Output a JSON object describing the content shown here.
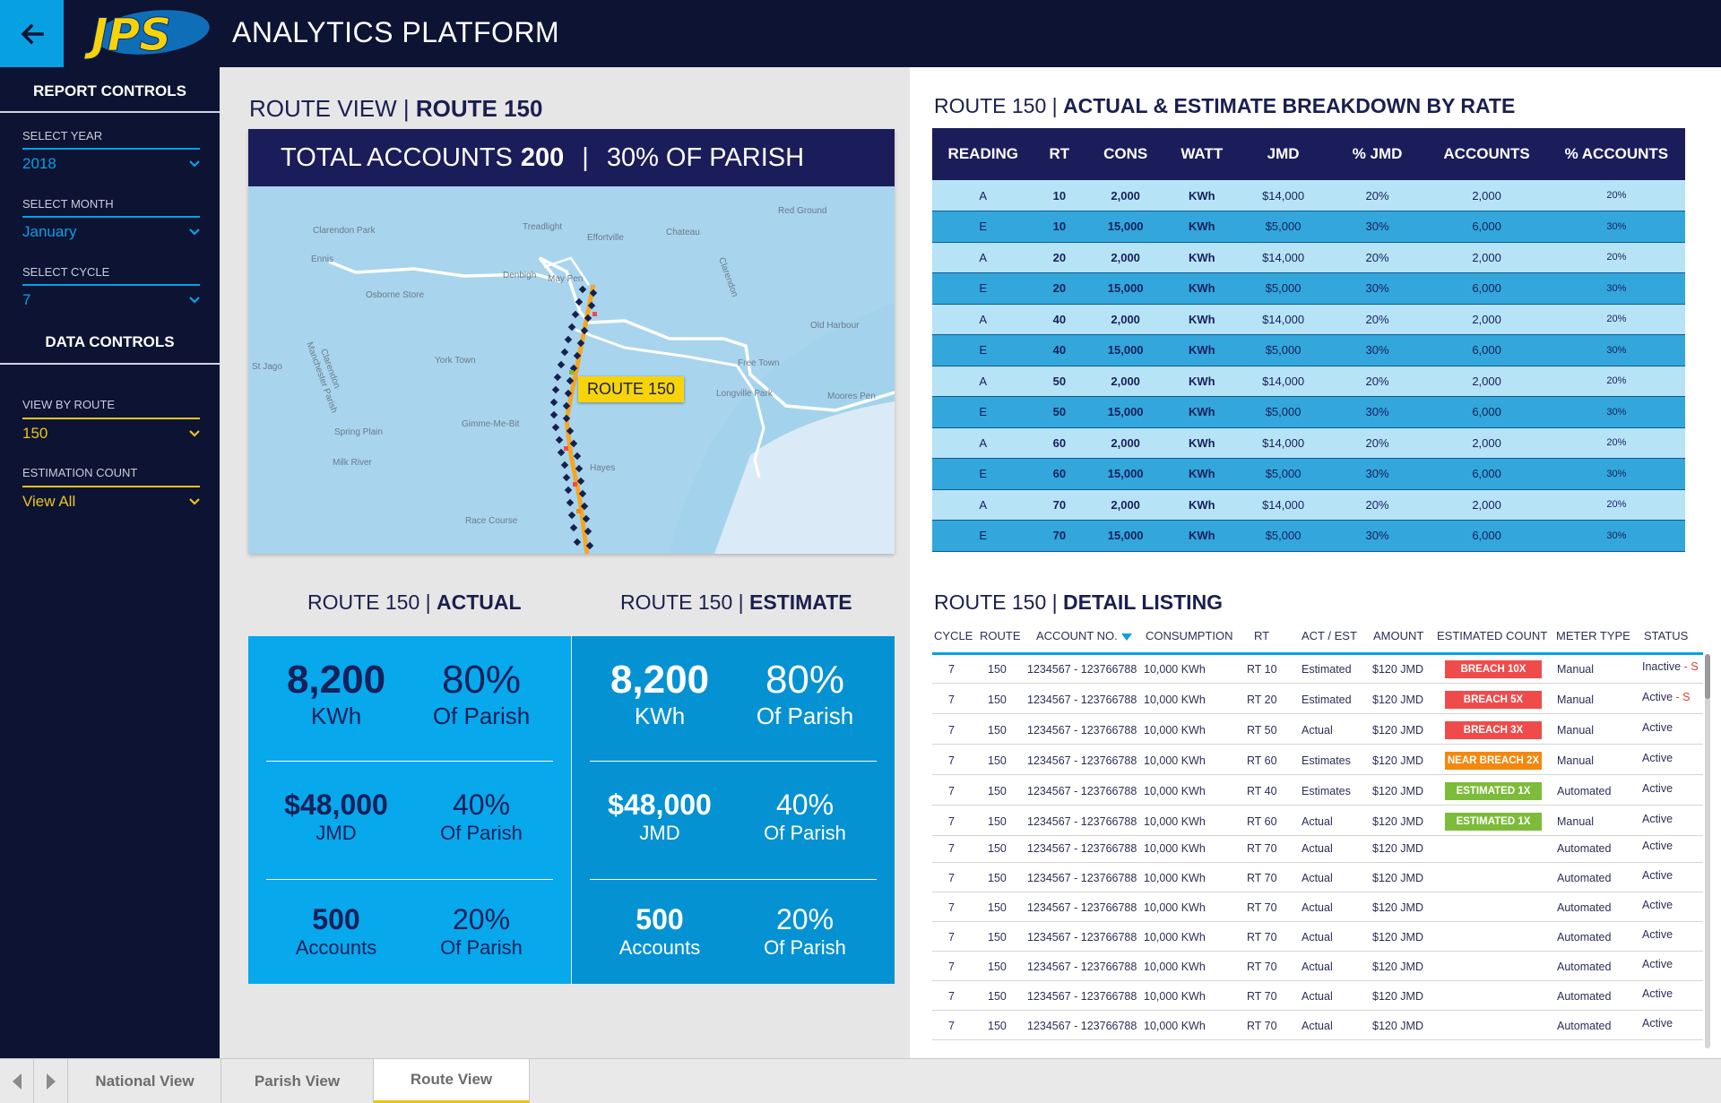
{
  "header": {
    "logo_text": "JPS",
    "title": "ANALYTICS PLATFORM"
  },
  "sidebar": {
    "report_controls": "REPORT CONTROLS",
    "data_controls": "DATA CONTROLS",
    "select_year_label": "SELECT YEAR",
    "select_year_value": "2018",
    "select_month_label": "SELECT MONTH",
    "select_month_value": "January",
    "select_cycle_label": "SELECT CYCLE",
    "select_cycle_value": "7",
    "view_by_route_label": "VIEW BY ROUTE",
    "view_by_route_value": "150",
    "estimation_count_label": "ESTIMATION COUNT",
    "estimation_count_value": "View All"
  },
  "route_view": {
    "title_prefix": "ROUTE VIEW | ",
    "title_bold": "ROUTE 150",
    "banner_prefix": "TOTAL ACCOUNTS",
    "banner_total": "200",
    "banner_sep": "|",
    "banner_parish": "30% OF PARISH",
    "route_tag": "ROUTE 150",
    "map_labels": [
      "Clarendon Park",
      "Treadlight",
      "Effortville",
      "Chateau",
      "Red Ground",
      "Osborne Store",
      "Denbigh",
      "May Pen",
      "Old Harbour",
      "St Jago",
      "York Town",
      "Free Town",
      "Longville Park",
      "Moores Pen",
      "Gimme-Me-Bit",
      "Spring Plain",
      "Milk River",
      "Race Course",
      "Hayes",
      "Clarendon",
      "Manchester Parish",
      "Clarendon",
      "Ennis"
    ]
  },
  "actual": {
    "title_prefix": "ROUTE 150 | ",
    "title_bold": "ACTUAL",
    "kwh_value": "8,200",
    "kwh_unit": "KWh",
    "kwh_pct": "80%",
    "kwh_pct_sub": "Of Parish",
    "jmd_value": "$48,000",
    "jmd_unit": "JMD",
    "jmd_pct": "40%",
    "jmd_pct_sub": "Of Parish",
    "acc_value": "500",
    "acc_unit": "Accounts",
    "acc_pct": "20%",
    "acc_pct_sub": "Of Parish"
  },
  "estimate": {
    "title_prefix": "ROUTE 150 | ",
    "title_bold": "ESTIMATE",
    "kwh_value": "8,200",
    "kwh_unit": "KWh",
    "kwh_pct": "80%",
    "kwh_pct_sub": "Of Parish",
    "jmd_value": "$48,000",
    "jmd_unit": "JMD",
    "jmd_pct": "40%",
    "jmd_pct_sub": "Of Parish",
    "acc_value": "500",
    "acc_unit": "Accounts",
    "acc_pct": "20%",
    "acc_pct_sub": "Of Parish"
  },
  "breakdown": {
    "title_prefix": "ROUTE 150 | ",
    "title_bold": "ACTUAL & ESTIMATE BREAKDOWN BY RATE",
    "headers": [
      "READING",
      "RT",
      "CONS",
      "WATT",
      "JMD",
      "% JMD",
      "ACCOUNTS",
      "% ACCOUNTS"
    ],
    "rows": [
      [
        "A",
        "10",
        "2,000",
        "KWh",
        "$14,000",
        "20%",
        "2,000",
        "20%"
      ],
      [
        "E",
        "10",
        "15,000",
        "KWh",
        "$5,000",
        "30%",
        "6,000",
        "30%"
      ],
      [
        "A",
        "20",
        "2,000",
        "KWh",
        "$14,000",
        "20%",
        "2,000",
        "20%"
      ],
      [
        "E",
        "20",
        "15,000",
        "KWh",
        "$5,000",
        "30%",
        "6,000",
        "30%"
      ],
      [
        "A",
        "40",
        "2,000",
        "KWh",
        "$14,000",
        "20%",
        "2,000",
        "20%"
      ],
      [
        "E",
        "40",
        "15,000",
        "KWh",
        "$5,000",
        "30%",
        "6,000",
        "30%"
      ],
      [
        "A",
        "50",
        "2,000",
        "KWh",
        "$14,000",
        "20%",
        "2,000",
        "20%"
      ],
      [
        "E",
        "50",
        "15,000",
        "KWh",
        "$5,000",
        "30%",
        "6,000",
        "30%"
      ],
      [
        "A",
        "60",
        "2,000",
        "KWh",
        "$14,000",
        "20%",
        "2,000",
        "20%"
      ],
      [
        "E",
        "60",
        "15,000",
        "KWh",
        "$5,000",
        "30%",
        "6,000",
        "30%"
      ],
      [
        "A",
        "70",
        "2,000",
        "KWh",
        "$14,000",
        "20%",
        "2,000",
        "20%"
      ],
      [
        "E",
        "70",
        "15,000",
        "KWh",
        "$5,000",
        "30%",
        "6,000",
        "30%"
      ]
    ]
  },
  "detail": {
    "title_prefix": "ROUTE 150 | ",
    "title_bold": "DETAIL LISTING",
    "headers": [
      "CYCLE",
      "ROUTE",
      "ACCOUNT NO.",
      "CONSUMPTION",
      "RT",
      "ACT / EST",
      "AMOUNT",
      "ESTIMATED COUNT",
      "METER TYPE",
      "STATUS"
    ],
    "rows": [
      {
        "cycle": "7",
        "route": "150",
        "account": "1234567 - 123766788",
        "consumption": "10,000 KWh",
        "rt": "RT 10",
        "act": "Estimated",
        "amount": "$120 JMD",
        "badge": "BREACH 10X",
        "badge_color": "red",
        "meter": "Manual",
        "status": "Inactive",
        "status_s": " - S"
      },
      {
        "cycle": "7",
        "route": "150",
        "account": "1234567 - 123766788",
        "consumption": "10,000 KWh",
        "rt": "RT 20",
        "act": "Estimated",
        "amount": "$120 JMD",
        "badge": "BREACH 5X",
        "badge_color": "red",
        "meter": "Manual",
        "status": "Active",
        "status_s": " - S"
      },
      {
        "cycle": "7",
        "route": "150",
        "account": "1234567 - 123766788",
        "consumption": "10,000 KWh",
        "rt": "RT 50",
        "act": "Actual",
        "amount": "$120 JMD",
        "badge": "BREACH 3X",
        "badge_color": "red",
        "meter": "Manual",
        "status": "Active",
        "status_s": ""
      },
      {
        "cycle": "7",
        "route": "150",
        "account": "1234567 - 123766788",
        "consumption": "10,000 KWh",
        "rt": "RT 60",
        "act": "Estimates",
        "amount": "$120 JMD",
        "badge": "NEAR BREACH 2X",
        "badge_color": "orange",
        "meter": "Manual",
        "status": "Active",
        "status_s": ""
      },
      {
        "cycle": "7",
        "route": "150",
        "account": "1234567 - 123766788",
        "consumption": "10,000 KWh",
        "rt": "RT 40",
        "act": "Estimates",
        "amount": "$120 JMD",
        "badge": "ESTIMATED 1X",
        "badge_color": "green",
        "meter": "Automated",
        "status": "Active",
        "status_s": ""
      },
      {
        "cycle": "7",
        "route": "150",
        "account": "1234567 - 123766788",
        "consumption": "10,000 KWh",
        "rt": "RT 60",
        "act": "Actual",
        "amount": "$120 JMD",
        "badge": "ESTIMATED 1X",
        "badge_color": "green",
        "meter": "Manual",
        "status": "Active",
        "status_s": ""
      },
      {
        "cycle": "7",
        "route": "150",
        "account": "1234567 - 123766788",
        "consumption": "10,000 KWh",
        "rt": "RT 70",
        "act": "Actual",
        "amount": "$120 JMD",
        "badge": "",
        "badge_color": "",
        "meter": "Automated",
        "status": "Active",
        "status_s": ""
      },
      {
        "cycle": "7",
        "route": "150",
        "account": "1234567 - 123766788",
        "consumption": "10,000 KWh",
        "rt": "RT 70",
        "act": "Actual",
        "amount": "$120 JMD",
        "badge": "",
        "badge_color": "",
        "meter": "Automated",
        "status": "Active",
        "status_s": ""
      },
      {
        "cycle": "7",
        "route": "150",
        "account": "1234567 - 123766788",
        "consumption": "10,000 KWh",
        "rt": "RT 70",
        "act": "Actual",
        "amount": "$120 JMD",
        "badge": "",
        "badge_color": "",
        "meter": "Automated",
        "status": "Active",
        "status_s": ""
      },
      {
        "cycle": "7",
        "route": "150",
        "account": "1234567 - 123766788",
        "consumption": "10,000 KWh",
        "rt": "RT 70",
        "act": "Actual",
        "amount": "$120 JMD",
        "badge": "",
        "badge_color": "",
        "meter": "Automated",
        "status": "Active",
        "status_s": ""
      },
      {
        "cycle": "7",
        "route": "150",
        "account": "1234567 - 123766788",
        "consumption": "10,000 KWh",
        "rt": "RT 70",
        "act": "Actual",
        "amount": "$120 JMD",
        "badge": "",
        "badge_color": "",
        "meter": "Automated",
        "status": "Active",
        "status_s": ""
      },
      {
        "cycle": "7",
        "route": "150",
        "account": "1234567 - 123766788",
        "consumption": "10,000 KWh",
        "rt": "RT 70",
        "act": "Actual",
        "amount": "$120 JMD",
        "badge": "",
        "badge_color": "",
        "meter": "Automated",
        "status": "Active",
        "status_s": ""
      },
      {
        "cycle": "7",
        "route": "150",
        "account": "1234567 - 123766788",
        "consumption": "10,000 KWh",
        "rt": "RT 70",
        "act": "Actual",
        "amount": "$120 JMD",
        "badge": "",
        "badge_color": "",
        "meter": "Automated",
        "status": "Active",
        "status_s": ""
      }
    ]
  },
  "tabs": [
    "National View",
    "Parish View",
    "Route View"
  ],
  "active_tab": "Route View",
  "colors": {
    "navy": "#0d1333",
    "accent_blue": "#07a1e3",
    "accent_yellow": "#e9c51b",
    "badge_red": "#f04b4b",
    "badge_orange": "#f5870d",
    "badge_green": "#7dbb3a"
  }
}
